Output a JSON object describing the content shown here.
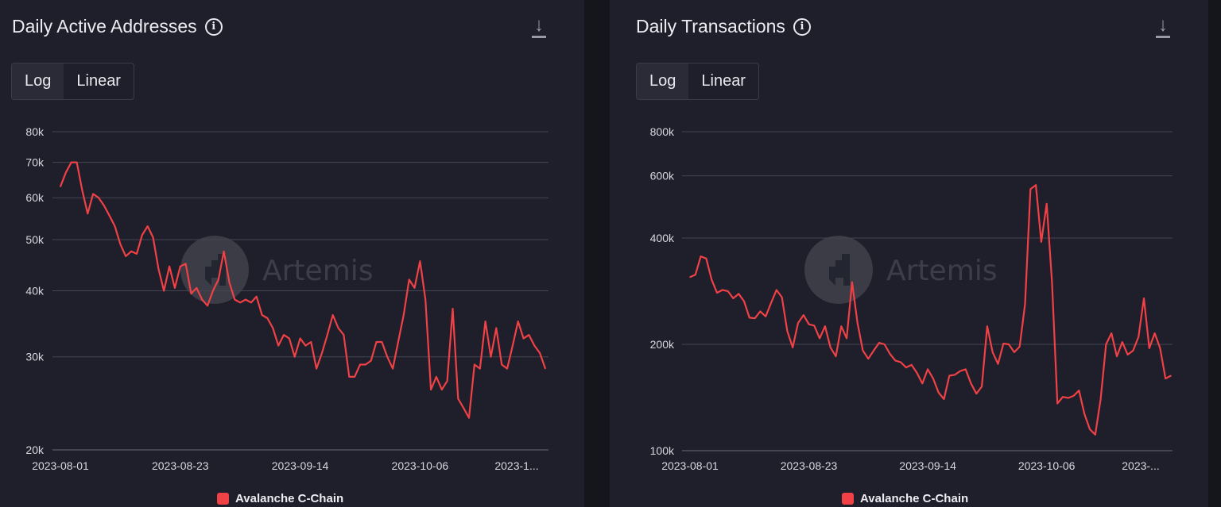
{
  "accent_color": "#ef4146",
  "watermark": "Artemis",
  "scale_options": [
    "Log",
    "Linear"
  ],
  "selected_scale": "Log",
  "chart_data": [
    {
      "type": "line",
      "title": "Daily Active Addresses",
      "yscale": "log",
      "ylim": [
        20000,
        80000
      ],
      "yticks": [
        20000,
        30000,
        40000,
        50000,
        60000,
        70000,
        80000
      ],
      "ytick_labels": [
        "20k",
        "30k",
        "40k",
        "50k",
        "60k",
        "70k",
        "80k"
      ],
      "x_start": "2023-08-01",
      "xtick_labels": [
        "2023-08-01",
        "2023-08-23",
        "2023-09-14",
        "2023-10-06",
        "2023-1..."
      ],
      "xtick_days": [
        0,
        22,
        44,
        66,
        88
      ],
      "legend": "bottom-center",
      "series": [
        {
          "name": "Avalanche C-Chain",
          "color": "#ef4146",
          "values": [
            63000,
            67000,
            70000,
            70000,
            62000,
            56000,
            61000,
            60000,
            58000,
            55500,
            53000,
            49000,
            46500,
            47500,
            47000,
            51000,
            53000,
            50500,
            44000,
            40000,
            44500,
            40500,
            44500,
            45000,
            39500,
            40500,
            38500,
            37500,
            40000,
            42000,
            47500,
            41500,
            38500,
            38000,
            38500,
            38000,
            39000,
            36000,
            35500,
            34000,
            31500,
            33000,
            32500,
            30000,
            32500,
            31500,
            32000,
            28500,
            30500,
            33000,
            36000,
            34000,
            33000,
            27500,
            27500,
            29000,
            29000,
            29500,
            32000,
            32000,
            30000,
            28500,
            32000,
            36000,
            42000,
            40500,
            45500,
            38500,
            26000,
            27500,
            26000,
            27000,
            37000,
            25000,
            24000,
            23000,
            29000,
            28500,
            35000,
            30000,
            34000,
            29000,
            28500,
            31500,
            35000,
            32500,
            33000,
            31500,
            30500,
            28500
          ]
        }
      ]
    },
    {
      "type": "line",
      "title": "Daily Transactions",
      "yscale": "log",
      "ylim": [
        100000,
        800000
      ],
      "yticks": [
        100000,
        200000,
        400000,
        600000,
        800000
      ],
      "ytick_labels": [
        "100k",
        "200k",
        "400k",
        "600k",
        "800k"
      ],
      "x_start": "2023-08-01",
      "xtick_labels": [
        "2023-08-01",
        "2023-08-23",
        "2023-09-14",
        "2023-10-06",
        "2023-..."
      ],
      "xtick_days": [
        0,
        22,
        44,
        66,
        88
      ],
      "legend": "bottom-center",
      "series": [
        {
          "name": "Avalanche C-Chain",
          "color": "#ef4146",
          "values": [
            310000,
            315000,
            355000,
            350000,
            305000,
            280000,
            285000,
            283000,
            270000,
            278000,
            265000,
            238000,
            237000,
            248000,
            240000,
            262000,
            285000,
            272000,
            218000,
            196000,
            230000,
            242000,
            228000,
            226000,
            208000,
            225000,
            196000,
            185000,
            225000,
            208000,
            300000,
            230000,
            192000,
            182000,
            192000,
            202000,
            200000,
            188000,
            180000,
            178000,
            172000,
            175000,
            166000,
            155000,
            170000,
            160000,
            146000,
            140000,
            163000,
            164000,
            168000,
            170000,
            155000,
            145000,
            152000,
            225000,
            190000,
            176000,
            201000,
            200000,
            190000,
            197000,
            260000,
            550000,
            565000,
            390000,
            500000,
            300000,
            136000,
            142000,
            141000,
            143000,
            148000,
            127000,
            115000,
            111000,
            140000,
            200000,
            215000,
            185000,
            203000,
            187000,
            192000,
            210000,
            270000,
            195000,
            215000,
            195000,
            160000,
            163000
          ]
        }
      ]
    }
  ]
}
